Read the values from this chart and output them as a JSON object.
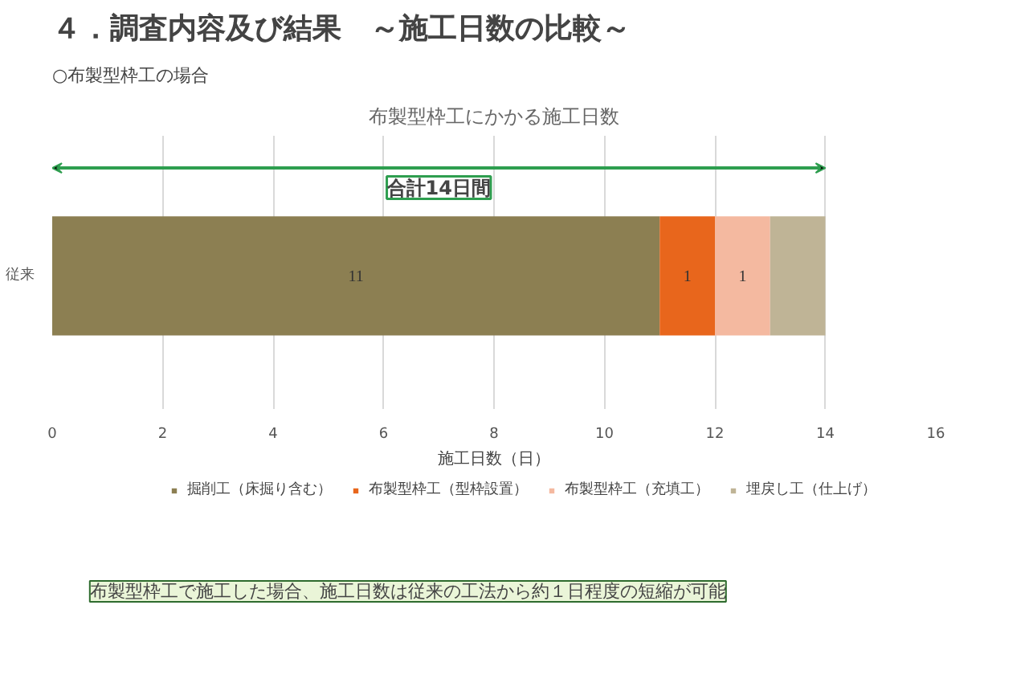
{
  "chart_data": {
    "type": "bar",
    "orientation": "horizontal",
    "stacked": true,
    "title": "布製型枠工にかかる施工日数",
    "categories": [
      "従来"
    ],
    "series": [
      {
        "name": "掘削工（床掘り含む）",
        "color": "#8c7f52",
        "values": [
          11
        ],
        "value_labels": [
          "11"
        ]
      },
      {
        "name": "布製型枠工（型枠設置）",
        "color": "#e8661c",
        "values": [
          1
        ],
        "value_labels": [
          "1"
        ]
      },
      {
        "name": "布製型枠工（充填工）",
        "color": "#f4b9a0",
        "values": [
          1
        ],
        "value_labels": [
          "1"
        ]
      },
      {
        "name": "埋戻し工（仕上げ）",
        "color": "#bfb496",
        "values": [
          1
        ],
        "value_labels": [
          null
        ]
      }
    ],
    "xlabel": "施工日数（日）",
    "xlim": [
      0,
      16
    ],
    "xticks": [
      0,
      2,
      4,
      6,
      8,
      10,
      12,
      14,
      16
    ],
    "grid": "x",
    "legend": "bottom",
    "annotations": [
      "４．調査内容及び結果　～施工日数の比較～",
      "○布製型枠工の場合",
      "布製型枠工で施工した場合、施工日数は従来の工法から約１日程度の短縮が可能",
      "合計14日間"
    ]
  }
}
